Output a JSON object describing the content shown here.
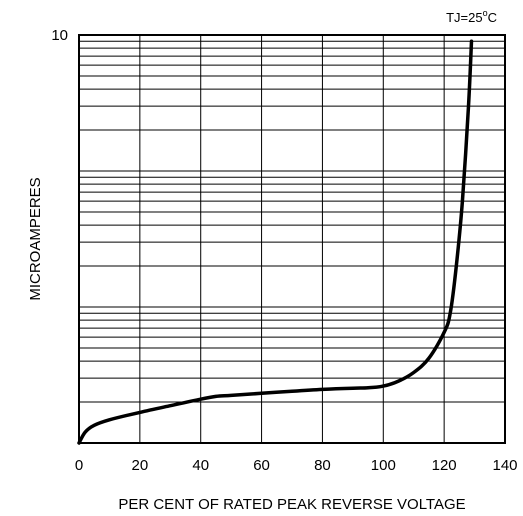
{
  "chart_data": {
    "type": "line",
    "title": "",
    "annotation": {
      "text_prefix": "TJ=25",
      "text_sup": "o",
      "text_suffix": "C"
    },
    "xlabel": "PER CENT OF RATED PEAK REVERSE VOLTAGE",
    "ylabel": "MICROAMPERES",
    "xlim": [
      0,
      140
    ],
    "x_ticks": [
      0,
      20,
      40,
      60,
      80,
      100,
      120,
      140
    ],
    "x_tick_labels": [
      "0",
      "20",
      "40",
      "60",
      "80",
      "100",
      "120",
      "140"
    ],
    "y_scale": "log",
    "ylim": [
      0.01,
      10
    ],
    "y_tick_labels": [
      {
        "value": 10,
        "label": "10"
      }
    ],
    "grid": true,
    "series": [
      {
        "x": [
          0,
          2,
          5,
          10,
          20,
          30,
          40,
          45,
          50,
          60,
          70,
          80,
          90,
          95,
          100,
          105,
          110,
          115,
          120,
          122,
          124,
          126,
          128,
          129
        ],
        "y": [
          0.01,
          0.012,
          0.0135,
          0.0148,
          0.0168,
          0.0188,
          0.021,
          0.022,
          0.0224,
          0.0232,
          0.024,
          0.0248,
          0.0253,
          0.0255,
          0.0262,
          0.0285,
          0.033,
          0.042,
          0.065,
          0.09,
          0.2,
          0.6,
          3,
          9
        ]
      }
    ]
  }
}
